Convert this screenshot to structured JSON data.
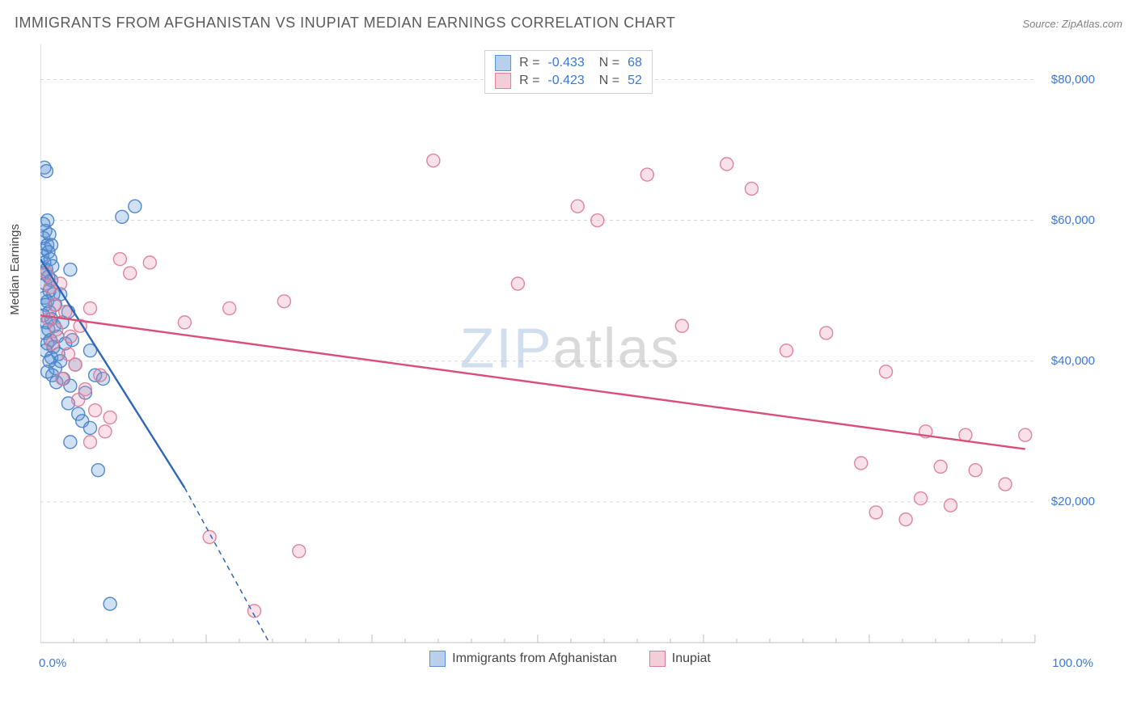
{
  "header": {
    "title": "IMMIGRANTS FROM AFGHANISTAN VS INUPIAT MEDIAN EARNINGS CORRELATION CHART",
    "source_label": "Source: ZipAtlas.com"
  },
  "watermark": {
    "prefix": "ZIP",
    "suffix": "atlas"
  },
  "chart": {
    "type": "scatter",
    "ylabel": "Median Earnings",
    "xlim": [
      0,
      100
    ],
    "ylim": [
      0,
      85000
    ],
    "background_color": "#ffffff",
    "grid_color": "#d6d6d6",
    "axis_color": "#cccccc",
    "tick_color": "#bdbdbd",
    "label_color": "#3a78d6",
    "x_ticks_minor_step": 3.333,
    "y_gridlines": [
      20000,
      40000,
      60000,
      80000
    ],
    "y_tick_labels": [
      "$20,000",
      "$40,000",
      "$60,000",
      "$80,000"
    ],
    "x_tick_labels": {
      "min": "0.0%",
      "max": "100.0%"
    },
    "marker_radius": 8,
    "marker_fill_opacity": 0.28,
    "marker_stroke_opacity": 0.95,
    "marker_stroke_width": 1.4,
    "trend_line_width": 2.4,
    "series": [
      {
        "name": "Immigrants from Afghanistan",
        "color": "#5b93d6",
        "stroke_color": "#4b83c6",
        "line_color": "#2e67b8",
        "R": "-0.433",
        "N": "68",
        "trend": {
          "x0": 0,
          "y0": 54500,
          "x1": 14.5,
          "y1": 22000,
          "dash_to_x": 23,
          "dash_to_y": 0
        },
        "points": [
          [
            0.4,
            67500
          ],
          [
            0.6,
            67000
          ],
          [
            0.3,
            59500
          ],
          [
            0.7,
            60000
          ],
          [
            0.5,
            58500
          ],
          [
            0.3,
            57500
          ],
          [
            0.9,
            58000
          ],
          [
            0.7,
            56500
          ],
          [
            0.5,
            56000
          ],
          [
            1.1,
            56500
          ],
          [
            0.2,
            55000
          ],
          [
            0.8,
            55500
          ],
          [
            0.4,
            54000
          ],
          [
            1.0,
            54500
          ],
          [
            0.6,
            53000
          ],
          [
            0.3,
            52500
          ],
          [
            1.2,
            53500
          ],
          [
            0.8,
            52000
          ],
          [
            0.5,
            51000
          ],
          [
            1.1,
            51500
          ],
          [
            3.0,
            53000
          ],
          [
            0.9,
            50000
          ],
          [
            0.4,
            49000
          ],
          [
            1.3,
            49500
          ],
          [
            0.7,
            48500
          ],
          [
            2.0,
            49500
          ],
          [
            0.5,
            48000
          ],
          [
            1.5,
            48000
          ],
          [
            0.9,
            47000
          ],
          [
            0.3,
            46500
          ],
          [
            1.1,
            46000
          ],
          [
            2.8,
            47000
          ],
          [
            0.6,
            45500
          ],
          [
            1.4,
            45000
          ],
          [
            0.8,
            44500
          ],
          [
            2.2,
            45500
          ],
          [
            0.4,
            44000
          ],
          [
            1.7,
            43500
          ],
          [
            1.0,
            43000
          ],
          [
            3.2,
            43000
          ],
          [
            0.7,
            42500
          ],
          [
            1.3,
            42000
          ],
          [
            2.5,
            42500
          ],
          [
            0.5,
            41500
          ],
          [
            1.8,
            41000
          ],
          [
            1.1,
            40500
          ],
          [
            0.9,
            40000
          ],
          [
            2.0,
            40000
          ],
          [
            3.5,
            39500
          ],
          [
            1.5,
            39000
          ],
          [
            0.7,
            38500
          ],
          [
            1.2,
            38000
          ],
          [
            5.0,
            41500
          ],
          [
            2.3,
            37500
          ],
          [
            1.6,
            37000
          ],
          [
            3.0,
            36500
          ],
          [
            5.5,
            38000
          ],
          [
            4.5,
            35500
          ],
          [
            6.3,
            37500
          ],
          [
            2.8,
            34000
          ],
          [
            3.8,
            32500
          ],
          [
            4.2,
            31500
          ],
          [
            5.0,
            30500
          ],
          [
            3.0,
            28500
          ],
          [
            5.8,
            24500
          ],
          [
            8.2,
            60500
          ],
          [
            7.0,
            5500
          ],
          [
            9.5,
            62000
          ]
        ]
      },
      {
        "name": "Inupiat",
        "color": "#e695ac",
        "stroke_color": "#dd7d99",
        "line_color": "#d94f7a",
        "R": "-0.423",
        "N": "52",
        "trend": {
          "x0": 0,
          "y0": 46500,
          "x1": 99,
          "y1": 27500
        },
        "points": [
          [
            0.6,
            52500
          ],
          [
            1.0,
            50500
          ],
          [
            1.4,
            48000
          ],
          [
            0.8,
            46000
          ],
          [
            2.0,
            51000
          ],
          [
            1.6,
            44500
          ],
          [
            2.5,
            47000
          ],
          [
            1.2,
            42500
          ],
          [
            3.0,
            43500
          ],
          [
            2.8,
            41000
          ],
          [
            4.0,
            45000
          ],
          [
            3.5,
            39500
          ],
          [
            5.0,
            47500
          ],
          [
            2.2,
            37500
          ],
          [
            4.5,
            36000
          ],
          [
            3.8,
            34500
          ],
          [
            6.0,
            38000
          ],
          [
            5.5,
            33000
          ],
          [
            8.0,
            54500
          ],
          [
            7.0,
            32000
          ],
          [
            6.5,
            30000
          ],
          [
            5.0,
            28500
          ],
          [
            9.0,
            52500
          ],
          [
            11.0,
            54000
          ],
          [
            14.5,
            45500
          ],
          [
            19.0,
            47500
          ],
          [
            24.5,
            48500
          ],
          [
            17.0,
            15000
          ],
          [
            26.0,
            13000
          ],
          [
            21.5,
            4500
          ],
          [
            48.0,
            51000
          ],
          [
            54.0,
            62000
          ],
          [
            56.0,
            60000
          ],
          [
            39.5,
            68500
          ],
          [
            61.0,
            66500
          ],
          [
            64.5,
            45000
          ],
          [
            69.0,
            68000
          ],
          [
            71.5,
            64500
          ],
          [
            75.0,
            41500
          ],
          [
            79.0,
            44000
          ],
          [
            82.5,
            25500
          ],
          [
            85.0,
            38500
          ],
          [
            84.0,
            18500
          ],
          [
            87.0,
            17500
          ],
          [
            88.5,
            20500
          ],
          [
            89.0,
            30000
          ],
          [
            90.5,
            25000
          ],
          [
            91.5,
            19500
          ],
          [
            93.0,
            29500
          ],
          [
            94.0,
            24500
          ],
          [
            97.0,
            22500
          ],
          [
            99.0,
            29500
          ]
        ]
      }
    ]
  },
  "bottom_legend": [
    {
      "label": "Immigrants from Afghanistan",
      "fill": "#b8d0ec",
      "stroke": "#5b93d6"
    },
    {
      "label": "Inupiat",
      "fill": "#f3cdd8",
      "stroke": "#dd7d99"
    }
  ]
}
